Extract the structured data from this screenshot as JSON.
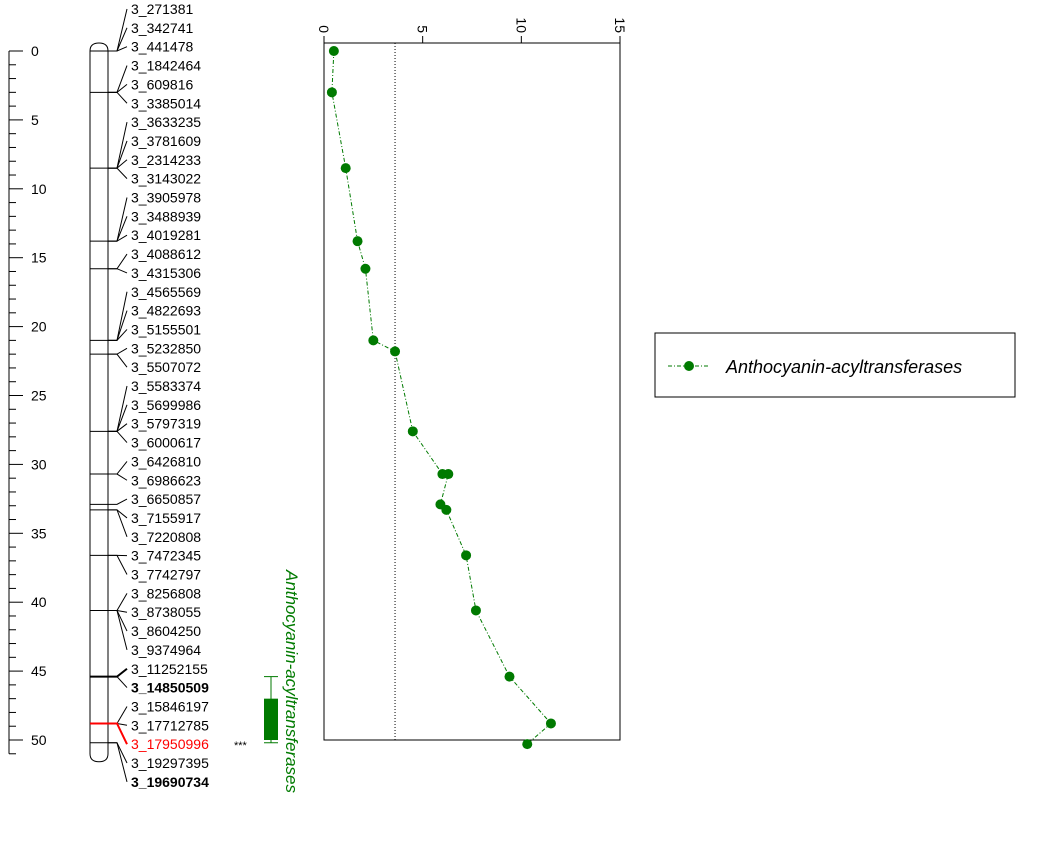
{
  "chart_data": {
    "type": "scatter",
    "subtype": "genetic-map-with-LOD-profile",
    "map_axis": {
      "range": [
        0,
        51
      ],
      "major_ticks": [
        "0",
        "5",
        "10",
        "15",
        "20",
        "25",
        "30",
        "35",
        "40",
        "45",
        "50"
      ],
      "minor_step": 1,
      "orientation": "vertical-downward"
    },
    "lod_axis": {
      "range": [
        0,
        15
      ],
      "ticks": [
        "0",
        "5",
        "10",
        "15"
      ],
      "tick_orientation": "rotated-90"
    },
    "threshold": 3.6,
    "chromosome": {
      "start": 0,
      "end": 51
    },
    "markers": [
      {
        "name": "3_271381",
        "pos": 0.0
      },
      {
        "name": "3_342741",
        "pos": 0.0
      },
      {
        "name": "3_441478",
        "pos": 0.0
      },
      {
        "name": "3_1842464",
        "pos": 3.0
      },
      {
        "name": "3_609816",
        "pos": 3.0
      },
      {
        "name": "3_3385014",
        "pos": 3.0
      },
      {
        "name": "3_3633235",
        "pos": 8.5
      },
      {
        "name": "3_3781609",
        "pos": 8.5
      },
      {
        "name": "3_2314233",
        "pos": 8.5
      },
      {
        "name": "3_3143022",
        "pos": 8.5
      },
      {
        "name": "3_3905978",
        "pos": 13.8
      },
      {
        "name": "3_3488939",
        "pos": 13.8
      },
      {
        "name": "3_4019281",
        "pos": 13.8
      },
      {
        "name": "3_4088612",
        "pos": 15.8
      },
      {
        "name": "3_4315306",
        "pos": 15.8
      },
      {
        "name": "3_4565569",
        "pos": 21.0
      },
      {
        "name": "3_4822693",
        "pos": 21.0
      },
      {
        "name": "3_5155501",
        "pos": 21.0
      },
      {
        "name": "3_5232850",
        "pos": 22.0
      },
      {
        "name": "3_5507072",
        "pos": 22.0
      },
      {
        "name": "3_5583374",
        "pos": 27.6
      },
      {
        "name": "3_5699986",
        "pos": 27.6
      },
      {
        "name": "3_5797319",
        "pos": 27.6
      },
      {
        "name": "3_6000617",
        "pos": 27.6
      },
      {
        "name": "3_6426810",
        "pos": 30.7
      },
      {
        "name": "3_6986623",
        "pos": 30.7
      },
      {
        "name": "3_6650857",
        "pos": 32.9
      },
      {
        "name": "3_7155917",
        "pos": 33.3
      },
      {
        "name": "3_7220808",
        "pos": 33.3
      },
      {
        "name": "3_7472345",
        "pos": 36.6
      },
      {
        "name": "3_7742797",
        "pos": 36.6
      },
      {
        "name": "3_8256808",
        "pos": 40.6
      },
      {
        "name": "3_8738055",
        "pos": 40.6
      },
      {
        "name": "3_8604250",
        "pos": 40.6
      },
      {
        "name": "3_9374964",
        "pos": 40.6
      },
      {
        "name": "3_11252155",
        "pos": 45.4,
        "style": "bold-line"
      },
      {
        "name": "3_14850509",
        "pos": 45.4,
        "style": "bold-label"
      },
      {
        "name": "3_15846197",
        "pos": 48.8
      },
      {
        "name": "3_17712785",
        "pos": 48.8
      },
      {
        "name": "3_17950996",
        "pos": 48.8,
        "style": "highlight",
        "flag": "***"
      },
      {
        "name": "3_19297395",
        "pos": 50.2
      },
      {
        "name": "3_19690734",
        "pos": 50.2,
        "style": "bold-label"
      }
    ],
    "series": [
      {
        "name": "Anthocyanin-acyltransferases",
        "color": "#007a00",
        "points": [
          {
            "pos": 0.0,
            "lod": 0.5
          },
          {
            "pos": 3.0,
            "lod": 0.4
          },
          {
            "pos": 8.5,
            "lod": 1.1
          },
          {
            "pos": 13.8,
            "lod": 1.7
          },
          {
            "pos": 15.8,
            "lod": 2.1
          },
          {
            "pos": 21.0,
            "lod": 2.5
          },
          {
            "pos": 21.8,
            "lod": 3.6
          },
          {
            "pos": 27.6,
            "lod": 4.5
          },
          {
            "pos": 30.7,
            "lod": 6.0
          },
          {
            "pos": 30.7,
            "lod": 6.3
          },
          {
            "pos": 32.9,
            "lod": 5.9
          },
          {
            "pos": 33.3,
            "lod": 6.2
          },
          {
            "pos": 36.6,
            "lod": 7.2
          },
          {
            "pos": 40.6,
            "lod": 7.7
          },
          {
            "pos": 45.4,
            "lod": 9.4
          },
          {
            "pos": 48.8,
            "lod": 11.5
          },
          {
            "pos": 50.3,
            "lod": 10.3
          }
        ]
      }
    ],
    "qtl": {
      "name": "Anthocyanin-acyltransferases",
      "color": "#007a00",
      "whisker": [
        45.4,
        50.2
      ],
      "box": [
        47.0,
        50.0
      ]
    },
    "legend": {
      "position": "right",
      "entries": [
        "Anthocyanin-acyltransferases"
      ]
    }
  }
}
